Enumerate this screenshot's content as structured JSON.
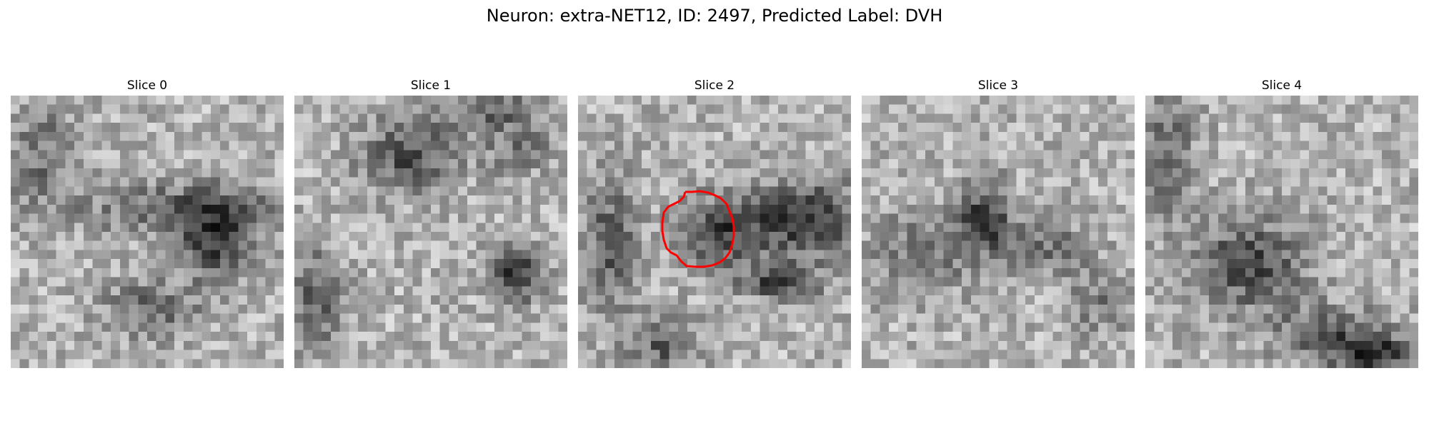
{
  "figure": {
    "title": "Neuron: extra-NET12, ID: 2497, Predicted Label: DVH"
  },
  "panels": [
    {
      "title": "Slice 0",
      "image": "grayscale-microscopy-tile",
      "has_contour": false
    },
    {
      "title": "Slice 1",
      "image": "grayscale-microscopy-tile",
      "has_contour": false
    },
    {
      "title": "Slice 2",
      "image": "grayscale-microscopy-tile",
      "has_contour": true
    },
    {
      "title": "Slice 3",
      "image": "grayscale-microscopy-tile",
      "has_contour": false
    },
    {
      "title": "Slice 4",
      "image": "grayscale-microscopy-tile",
      "has_contour": false
    }
  ],
  "colors": {
    "contour": "#ff0000",
    "background": "#ffffff"
  }
}
